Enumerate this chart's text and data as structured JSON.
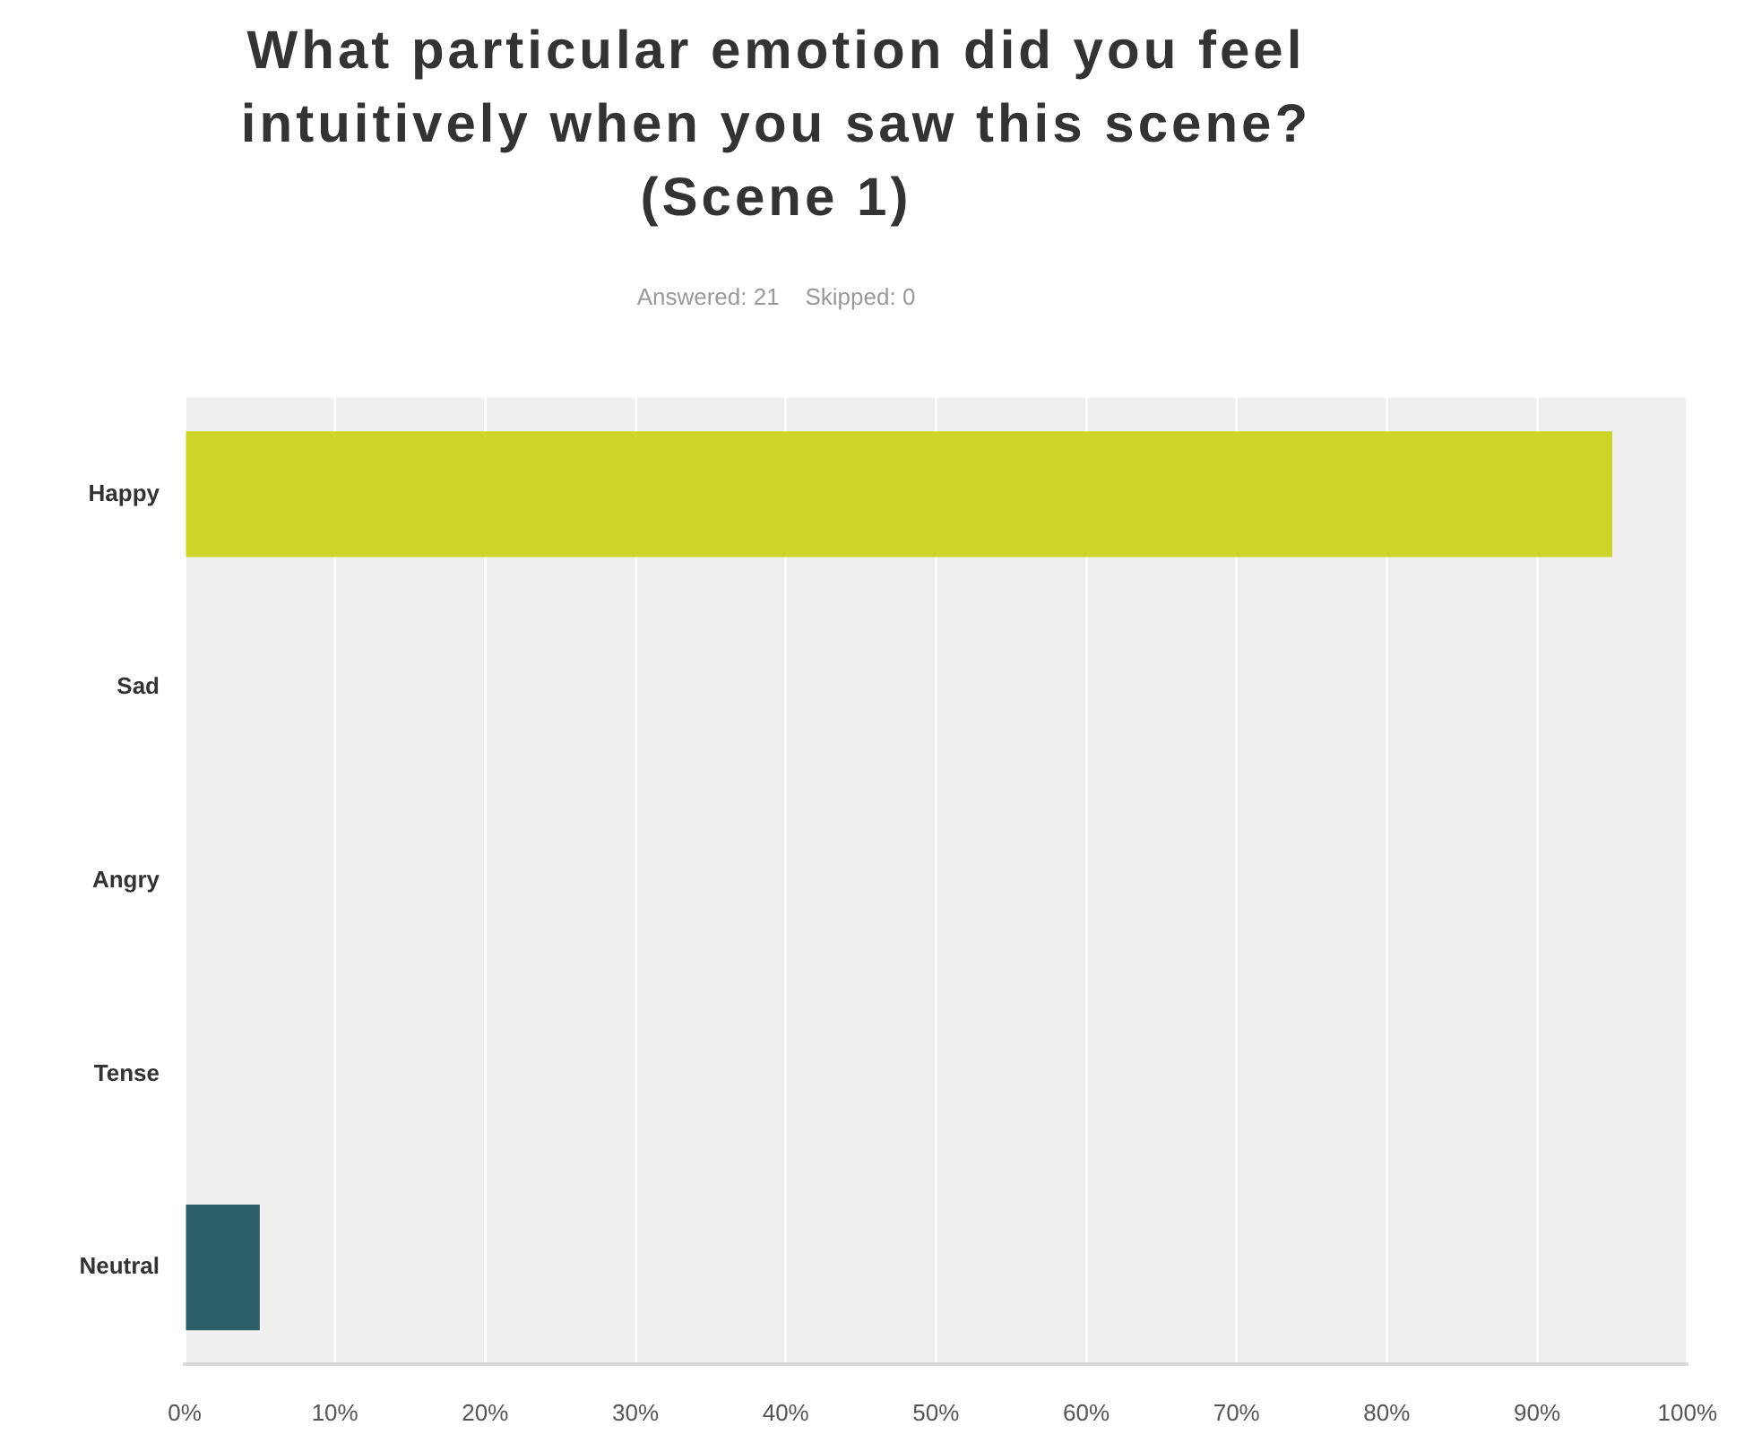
{
  "chart_data": {
    "type": "bar",
    "orientation": "horizontal",
    "title": "What particular emotion did you feel intuitively when you saw this scene? (Scene 1)",
    "subtitle": "Answered: 21    Skipped: 0",
    "categories": [
      "Happy",
      "Sad",
      "Angry",
      "Tense",
      "Neutral"
    ],
    "values": [
      95,
      0,
      0,
      0,
      5
    ],
    "colors": [
      "#cdd427",
      null,
      null,
      null,
      "#2c5f68"
    ],
    "xlim": [
      0,
      100
    ],
    "xticks": [
      {
        "value": 0,
        "label": "0%"
      },
      {
        "value": 10,
        "label": "10%"
      },
      {
        "value": 20,
        "label": "20%"
      },
      {
        "value": 30,
        "label": "30%"
      },
      {
        "value": 40,
        "label": "40%"
      },
      {
        "value": 50,
        "label": "50%"
      },
      {
        "value": 60,
        "label": "60%"
      },
      {
        "value": 70,
        "label": "70%"
      },
      {
        "value": 80,
        "label": "80%"
      },
      {
        "value": 90,
        "label": "90%"
      },
      {
        "value": 100,
        "label": "100%"
      }
    ],
    "grid": "x"
  }
}
